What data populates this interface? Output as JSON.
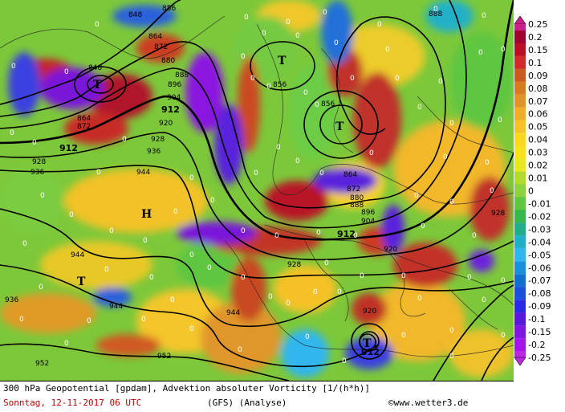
{
  "footer": {
    "line1": "300 hPa Geopotential [gpdam], Advektion absoluter Vorticity [1/(h*h)]",
    "date": "Sonntag, 12-11-2017  06 UTC",
    "model": "(GFS)  (Analyse)",
    "copyright": "©www.wetter3.de"
  },
  "legend": {
    "values": [
      "0.25",
      "0.2",
      "0.15",
      "0.1",
      "0.09",
      "0.08",
      "0.07",
      "0.06",
      "0.05",
      "0.04",
      "0.03",
      "0.02",
      "0.01",
      "0",
      "-0.01",
      "-0.02",
      "-0.03",
      "-0.04",
      "-0.05",
      "-0.06",
      "-0.07",
      "-0.08",
      "-0.09",
      "-0.1",
      "-0.15",
      "-0.2",
      "-0.25"
    ],
    "colors": [
      "#cc1e8a",
      "#a00030",
      "#bb0d24",
      "#d22a2a",
      "#cc5a1e",
      "#d87a1e",
      "#e09426",
      "#f0ae28",
      "#f6c226",
      "#fcd81e",
      "#f8e21e",
      "#e6e820",
      "#b2dc2c",
      "#8cd23c",
      "#5ec640",
      "#34b84c",
      "#22ae88",
      "#20b0c8",
      "#30b6ee",
      "#1890dc",
      "#1070d0",
      "#1a50dc",
      "#2a2ae6",
      "#5a18dc",
      "#8016e0",
      "#a414ea",
      "#bc28e0"
    ]
  },
  "map": {
    "contour_labels": [
      "848",
      "856",
      "864",
      "872",
      "880",
      "888",
      "896",
      "904",
      "912",
      "920",
      "928",
      "936",
      "944",
      "952"
    ],
    "centers": [
      {
        "type": "T"
      },
      {
        "type": "T"
      },
      {
        "type": "T"
      },
      {
        "type": "H"
      },
      {
        "type": "T"
      },
      {
        "type": "T"
      }
    ],
    "low_value": "912",
    "zero_marker": "0"
  }
}
